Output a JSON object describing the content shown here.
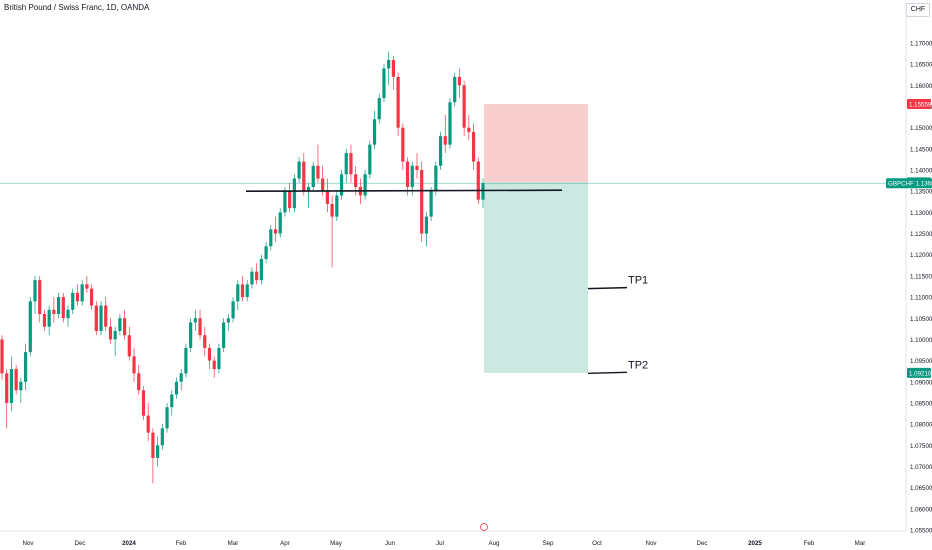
{
  "header": {
    "title": "British Pound / Swiss Franc, 1D, OANDA",
    "currency": "CHF"
  },
  "chart_data": {
    "type": "candlestick",
    "symbol": "GBPCHF",
    "interval": "1D",
    "source": "OANDA",
    "ylim": [
      1.054,
      1.1765
    ],
    "y_ticks": [
      "1.17000",
      "1.16500",
      "1.16000",
      "1.15500",
      "1.15000",
      "1.14500",
      "1.14000",
      "1.13500",
      "1.13000",
      "1.12500",
      "1.12000",
      "1.11500",
      "1.11000",
      "1.10500",
      "1.10000",
      "1.09500",
      "1.09000",
      "1.08500",
      "1.08000",
      "1.07500",
      "1.07000",
      "1.06500",
      "1.06000",
      "1.05500"
    ],
    "x_ticks": [
      "Nov",
      "Dec",
      "2024",
      "Feb",
      "Mar",
      "Apr",
      "May",
      "Jun",
      "Jul",
      "Aug",
      "Sep",
      "Oct",
      "Nov",
      "Dec",
      "2025",
      "Feb",
      "Mar"
    ],
    "current_price": {
      "symbol": "GBPCHF",
      "value": "1.13689",
      "color": "#089981"
    },
    "price_labels": [
      {
        "value": "1.15559",
        "color": "#f23645"
      },
      {
        "value": "1.13709",
        "color": "#089981"
      },
      {
        "value": "1.09210",
        "color": "#089981"
      }
    ],
    "support_level": 1.135,
    "position": {
      "type": "short",
      "entry": 1.13709,
      "stop_loss": 1.15559,
      "target": 1.0921,
      "stop_color": "#f7cdcd",
      "target_color": "#cbe8e1"
    },
    "targets": [
      {
        "label": "TP1",
        "price": 1.112
      },
      {
        "label": "TP2",
        "price": 1.092
      }
    ],
    "candle_colors": {
      "up": "#089981",
      "down": "#f23645"
    },
    "candles": [
      [
        1.1,
        1.101,
        1.0905,
        1.092
      ],
      [
        1.092,
        1.093,
        1.079,
        1.085
      ],
      [
        1.085,
        1.096,
        1.083,
        1.093
      ],
      [
        1.093,
        1.094,
        1.087,
        1.088
      ],
      [
        1.088,
        1.091,
        1.085,
        1.09
      ],
      [
        1.09,
        1.099,
        1.088,
        1.097
      ],
      [
        1.097,
        1.11,
        1.096,
        1.109
      ],
      [
        1.109,
        1.115,
        1.106,
        1.114
      ],
      [
        1.114,
        1.115,
        1.104,
        1.106
      ],
      [
        1.106,
        1.107,
        1.102,
        1.103
      ],
      [
        1.103,
        1.108,
        1.101,
        1.107
      ],
      [
        1.107,
        1.11,
        1.104,
        1.106
      ],
      [
        1.106,
        1.111,
        1.105,
        1.11
      ],
      [
        1.11,
        1.111,
        1.104,
        1.105
      ],
      [
        1.105,
        1.108,
        1.103,
        1.107
      ],
      [
        1.107,
        1.112,
        1.106,
        1.111
      ],
      [
        1.111,
        1.113,
        1.108,
        1.109
      ],
      [
        1.109,
        1.114,
        1.108,
        1.113
      ],
      [
        1.113,
        1.115,
        1.111,
        1.112
      ],
      [
        1.112,
        1.113,
        1.107,
        1.108
      ],
      [
        1.108,
        1.109,
        1.101,
        1.102
      ],
      [
        1.102,
        1.109,
        1.101,
        1.108
      ],
      [
        1.108,
        1.11,
        1.102,
        1.103
      ],
      [
        1.103,
        1.105,
        1.099,
        1.1
      ],
      [
        1.1,
        1.103,
        1.096,
        1.102
      ],
      [
        1.102,
        1.106,
        1.101,
        1.105
      ],
      [
        1.105,
        1.107,
        1.1,
        1.101
      ],
      [
        1.101,
        1.103,
        1.095,
        1.096
      ],
      [
        1.096,
        1.098,
        1.09,
        1.092
      ],
      [
        1.092,
        1.094,
        1.087,
        1.088
      ],
      [
        1.088,
        1.089,
        1.081,
        1.082
      ],
      [
        1.082,
        1.085,
        1.076,
        1.078
      ],
      [
        1.078,
        1.079,
        1.066,
        1.072
      ],
      [
        1.072,
        1.077,
        1.07,
        1.075
      ],
      [
        1.075,
        1.08,
        1.074,
        1.079
      ],
      [
        1.079,
        1.085,
        1.078,
        1.084
      ],
      [
        1.084,
        1.088,
        1.082,
        1.087
      ],
      [
        1.087,
        1.091,
        1.086,
        1.09
      ],
      [
        1.09,
        1.093,
        1.088,
        1.092
      ],
      [
        1.092,
        1.099,
        1.091,
        1.098
      ],
      [
        1.098,
        1.105,
        1.097,
        1.104
      ],
      [
        1.104,
        1.107,
        1.102,
        1.105
      ],
      [
        1.105,
        1.107,
        1.1,
        1.101
      ],
      [
        1.101,
        1.103,
        1.096,
        1.098
      ],
      [
        1.098,
        1.099,
        1.093,
        1.095
      ],
      [
        1.095,
        1.096,
        1.091,
        1.093
      ],
      [
        1.093,
        1.099,
        1.092,
        1.098
      ],
      [
        1.098,
        1.105,
        1.097,
        1.104
      ],
      [
        1.104,
        1.106,
        1.102,
        1.105
      ],
      [
        1.105,
        1.11,
        1.104,
        1.109
      ],
      [
        1.109,
        1.114,
        1.107,
        1.113
      ],
      [
        1.113,
        1.115,
        1.109,
        1.11
      ],
      [
        1.11,
        1.114,
        1.109,
        1.113
      ],
      [
        1.113,
        1.117,
        1.112,
        1.116
      ],
      [
        1.116,
        1.118,
        1.113,
        1.114
      ],
      [
        1.114,
        1.12,
        1.113,
        1.119
      ],
      [
        1.119,
        1.123,
        1.118,
        1.122
      ],
      [
        1.122,
        1.127,
        1.121,
        1.126
      ],
      [
        1.126,
        1.129,
        1.123,
        1.125
      ],
      [
        1.125,
        1.131,
        1.124,
        1.13
      ],
      [
        1.13,
        1.136,
        1.129,
        1.135
      ],
      [
        1.135,
        1.137,
        1.13,
        1.131
      ],
      [
        1.131,
        1.139,
        1.13,
        1.138
      ],
      [
        1.138,
        1.143,
        1.137,
        1.142
      ],
      [
        1.142,
        1.144,
        1.134,
        1.135
      ],
      [
        1.135,
        1.137,
        1.131,
        1.136
      ],
      [
        1.136,
        1.142,
        1.135,
        1.141
      ],
      [
        1.141,
        1.146,
        1.137,
        1.138
      ],
      [
        1.138,
        1.141,
        1.134,
        1.135
      ],
      [
        1.135,
        1.138,
        1.13,
        1.132
      ],
      [
        1.132,
        1.134,
        1.117,
        1.129
      ],
      [
        1.129,
        1.135,
        1.128,
        1.134
      ],
      [
        1.134,
        1.14,
        1.133,
        1.139
      ],
      [
        1.139,
        1.145,
        1.137,
        1.144
      ],
      [
        1.144,
        1.146,
        1.137,
        1.139
      ],
      [
        1.139,
        1.141,
        1.134,
        1.136
      ],
      [
        1.136,
        1.138,
        1.132,
        1.134
      ],
      [
        1.134,
        1.14,
        1.133,
        1.139
      ],
      [
        1.139,
        1.147,
        1.138,
        1.146
      ],
      [
        1.146,
        1.154,
        1.145,
        1.152
      ],
      [
        1.152,
        1.158,
        1.151,
        1.157
      ],
      [
        1.157,
        1.165,
        1.156,
        1.164
      ],
      [
        1.164,
        1.168,
        1.16,
        1.166
      ],
      [
        1.166,
        1.167,
        1.159,
        1.162
      ],
      [
        1.162,
        1.163,
        1.148,
        1.15
      ],
      [
        1.15,
        1.151,
        1.14,
        1.142
      ],
      [
        1.142,
        1.143,
        1.134,
        1.136
      ],
      [
        1.136,
        1.142,
        1.134,
        1.141
      ],
      [
        1.141,
        1.144,
        1.138,
        1.14
      ],
      [
        1.14,
        1.142,
        1.123,
        1.125
      ],
      [
        1.125,
        1.13,
        1.122,
        1.129
      ],
      [
        1.129,
        1.136,
        1.128,
        1.135
      ],
      [
        1.135,
        1.142,
        1.134,
        1.141
      ],
      [
        1.141,
        1.149,
        1.14,
        1.148
      ],
      [
        1.148,
        1.153,
        1.144,
        1.146
      ],
      [
        1.146,
        1.157,
        1.145,
        1.156
      ],
      [
        1.156,
        1.163,
        1.155,
        1.162
      ],
      [
        1.162,
        1.164,
        1.157,
        1.16
      ],
      [
        1.16,
        1.161,
        1.148,
        1.15
      ],
      [
        1.15,
        1.153,
        1.147,
        1.149
      ],
      [
        1.149,
        1.151,
        1.14,
        1.142
      ],
      [
        1.142,
        1.143,
        1.132,
        1.133
      ],
      [
        1.133,
        1.138,
        1.131,
        1.1369
      ]
    ]
  }
}
